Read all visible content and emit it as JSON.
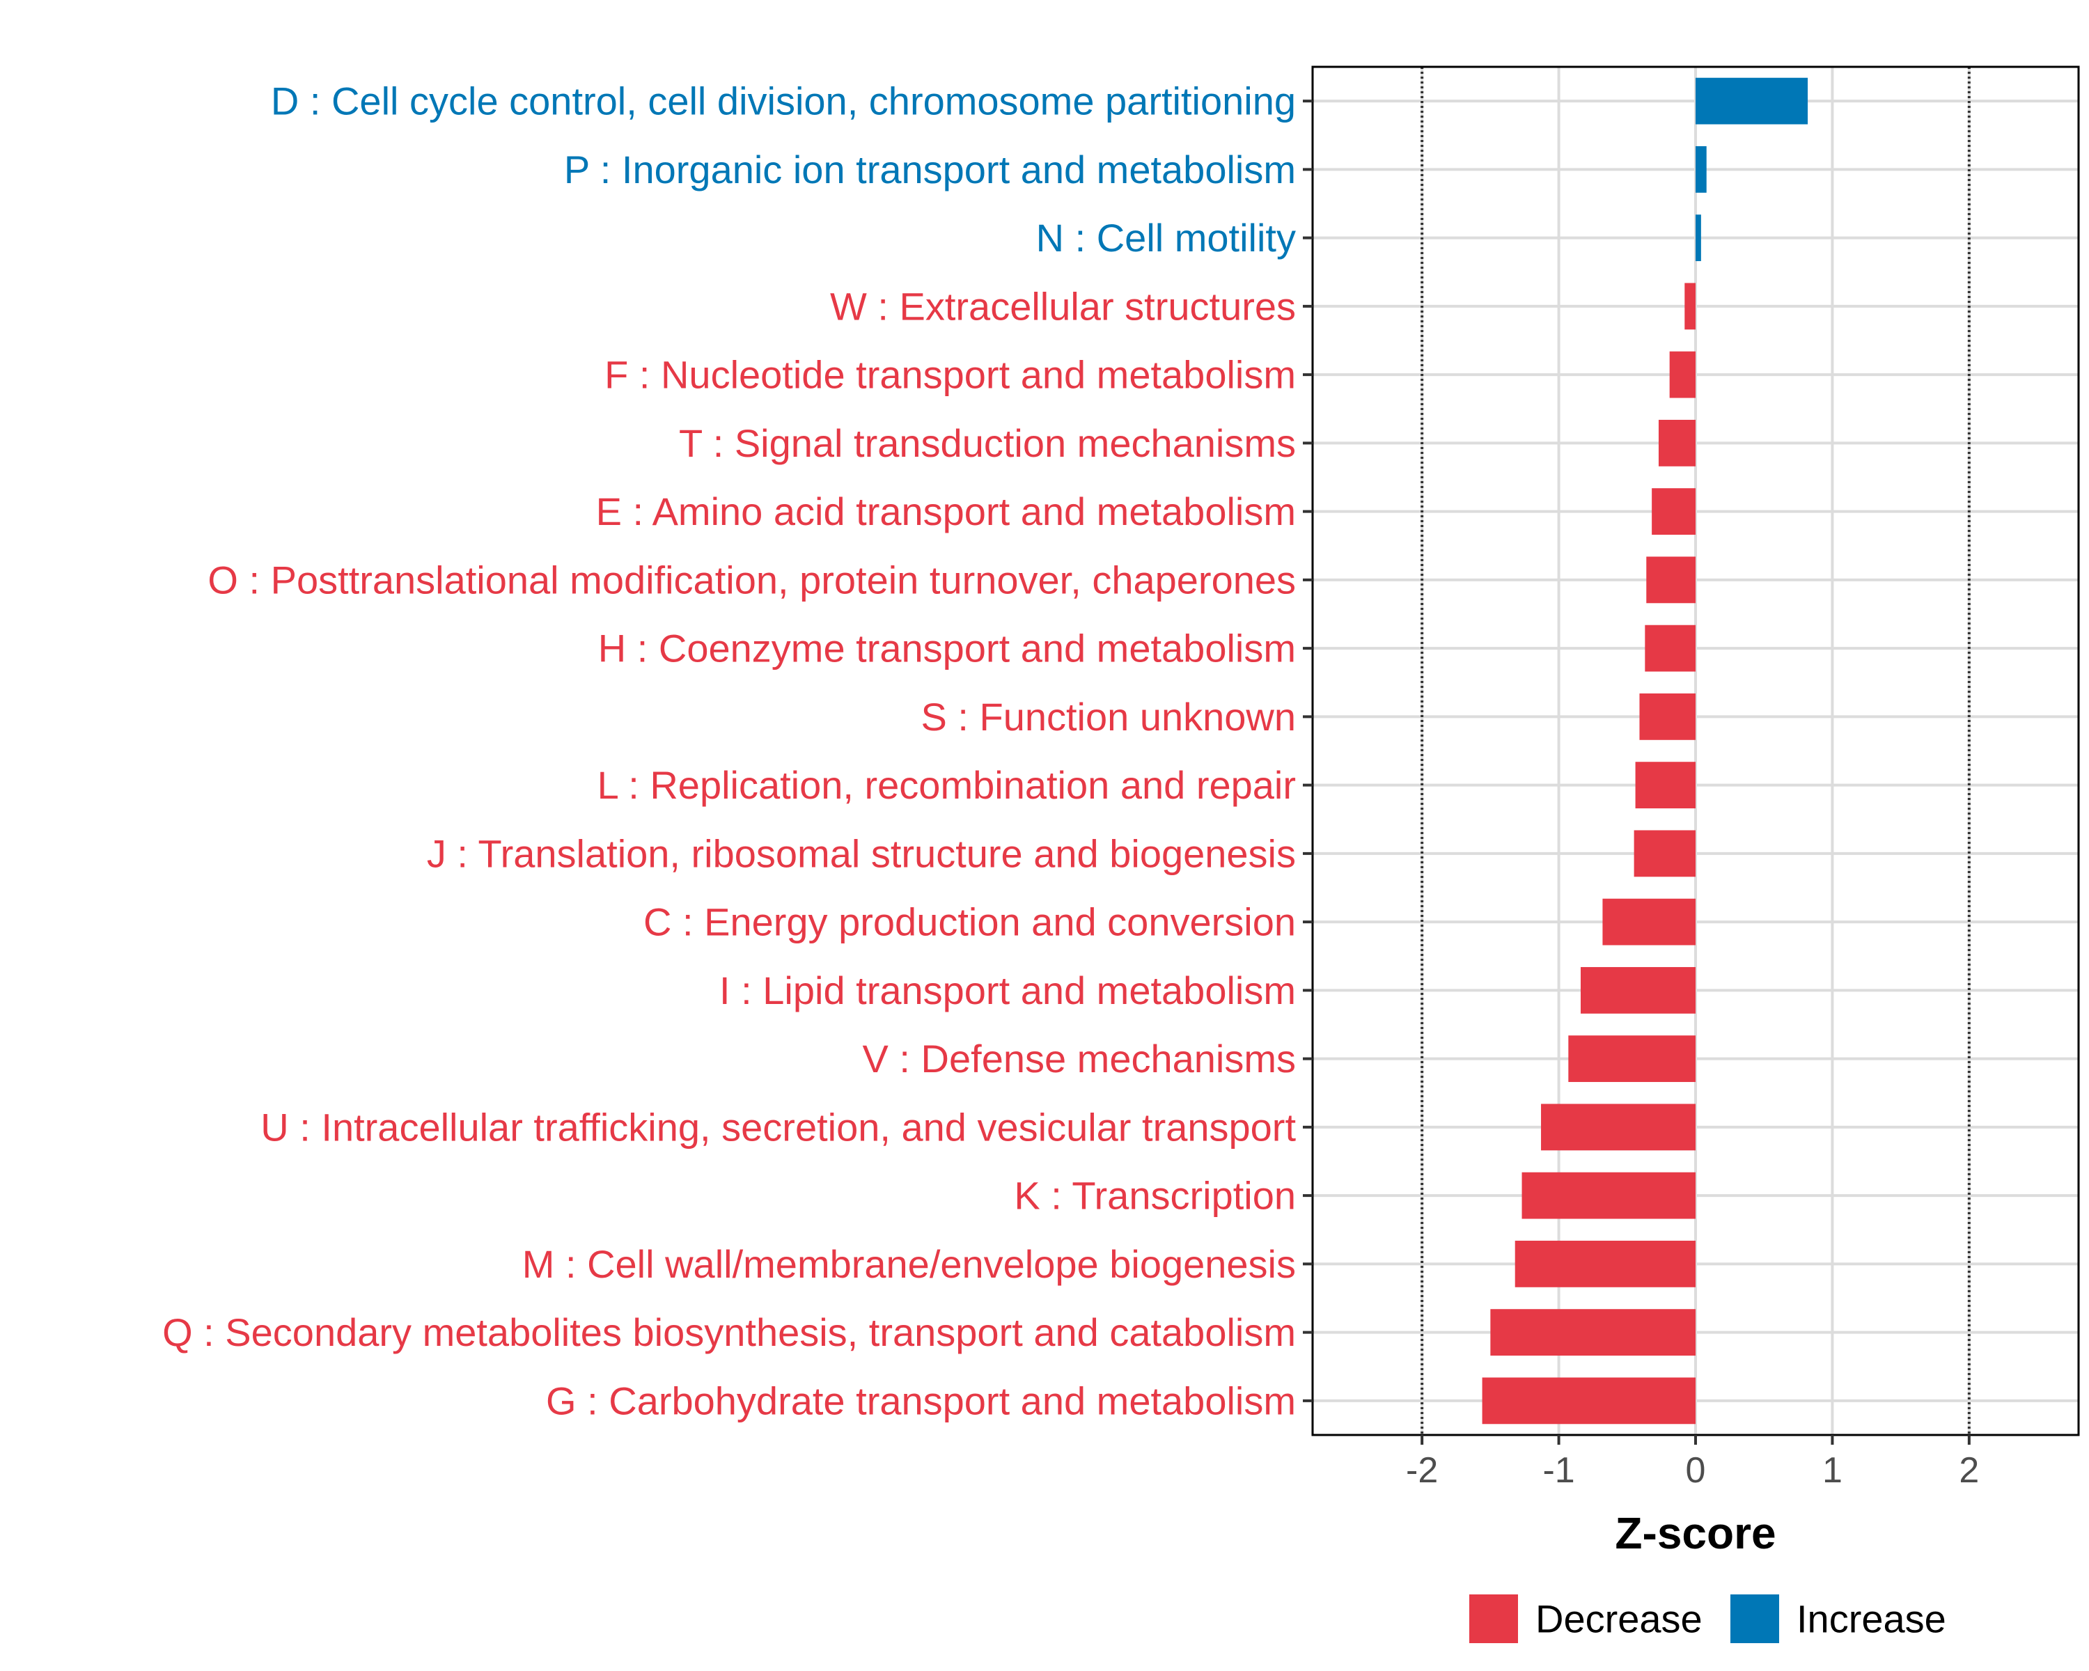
{
  "chart_data": {
    "type": "bar",
    "orientation": "horizontal",
    "title": "",
    "xlabel": "Z-score",
    "ylabel": "",
    "xlim": [
      -2.8,
      2.8
    ],
    "x_ticks": [
      -2,
      -1,
      0,
      1,
      2
    ],
    "x_tick_labels": [
      "-2",
      "-1",
      "0",
      "1",
      "2"
    ],
    "reference_lines": [
      -2,
      2
    ],
    "grid": true,
    "categories": [
      "D : Cell cycle control, cell division, chromosome partitioning",
      "P : Inorganic ion transport and metabolism",
      "N : Cell motility",
      "W : Extracellular structures",
      "F : Nucleotide transport and metabolism",
      "T : Signal transduction mechanisms",
      "E : Amino acid transport and metabolism",
      "O : Posttranslational modification, protein turnover, chaperones",
      "H : Coenzyme transport and metabolism",
      "S : Function unknown",
      "L : Replication, recombination and repair",
      "J : Translation, ribosomal structure and biogenesis",
      "C : Energy production and conversion",
      "I : Lipid transport and metabolism",
      "V : Defense mechanisms",
      "U : Intracellular trafficking, secretion, and vesicular transport",
      "K : Transcription",
      "M : Cell wall/membrane/envelope biogenesis",
      "Q : Secondary metabolites biosynthesis, transport and catabolism",
      "G : Carbohydrate transport and metabolism"
    ],
    "values": [
      0.82,
      0.08,
      0.04,
      -0.08,
      -0.19,
      -0.27,
      -0.32,
      -0.36,
      -0.37,
      -0.41,
      -0.44,
      -0.45,
      -0.68,
      -0.84,
      -0.93,
      -1.13,
      -1.27,
      -1.32,
      -1.5,
      -1.56
    ],
    "groups": [
      "Increase",
      "Increase",
      "Increase",
      "Decrease",
      "Decrease",
      "Decrease",
      "Decrease",
      "Decrease",
      "Decrease",
      "Decrease",
      "Decrease",
      "Decrease",
      "Decrease",
      "Decrease",
      "Decrease",
      "Decrease",
      "Decrease",
      "Decrease",
      "Decrease",
      "Decrease"
    ],
    "legend": {
      "position": "bottom",
      "entries": [
        {
          "label": "Decrease",
          "color": "#E63946"
        },
        {
          "label": "Increase",
          "color": "#0077B6"
        }
      ]
    },
    "colors": {
      "Decrease": "#E63946",
      "Increase": "#0077B6"
    }
  }
}
